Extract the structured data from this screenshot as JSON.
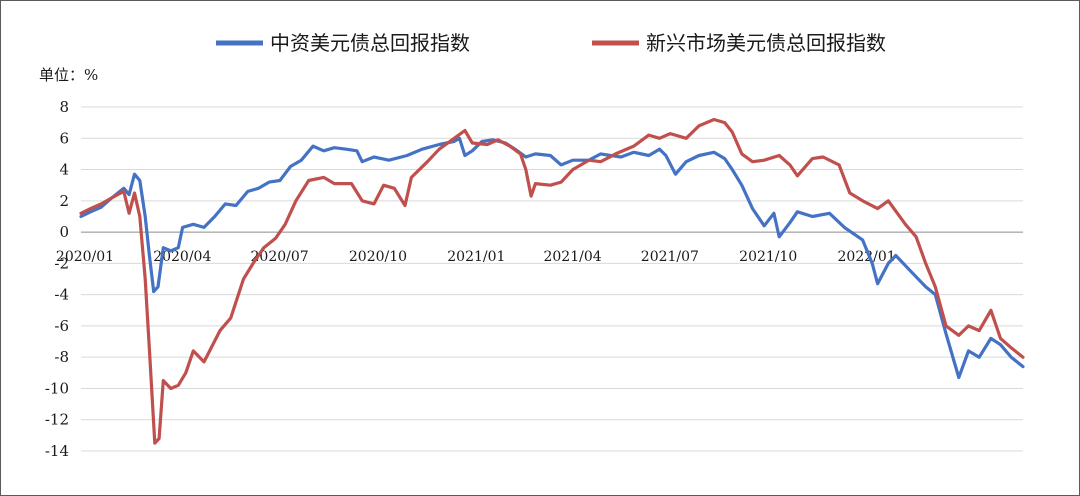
{
  "chart_data": {
    "type": "line",
    "unit_label": "单位：%",
    "ylim": [
      -14,
      8
    ],
    "yticks": [
      8,
      6,
      4,
      2,
      0,
      -2,
      -4,
      -6,
      -8,
      -10,
      -12,
      -14
    ],
    "xlim": [
      "2020-01-01",
      "2022-05-31"
    ],
    "xticks": [
      {
        "label": "2020/01",
        "date": "2020-01-01"
      },
      {
        "label": "2020/04",
        "date": "2020-04-01"
      },
      {
        "label": "2020/07",
        "date": "2020-07-01"
      },
      {
        "label": "2020/10",
        "date": "2020-10-01"
      },
      {
        "label": "2021/01",
        "date": "2021-01-01"
      },
      {
        "label": "2021/04",
        "date": "2021-04-01"
      },
      {
        "label": "2021/07",
        "date": "2021-07-01"
      },
      {
        "label": "2021/10",
        "date": "2021-10-01"
      },
      {
        "label": "2022/01",
        "date": "2022-01-01"
      }
    ],
    "grid": "horizontal",
    "legend_position": "top",
    "series": [
      {
        "name": "中资美元债总回报指数",
        "color": "#4472c4",
        "points": [
          [
            "2020-01-01",
            1.0
          ],
          [
            "2020-01-10",
            1.3
          ],
          [
            "2020-01-20",
            1.6
          ],
          [
            "2020-01-30",
            2.2
          ],
          [
            "2020-02-10",
            2.8
          ],
          [
            "2020-02-15",
            2.4
          ],
          [
            "2020-02-20",
            3.7
          ],
          [
            "2020-02-25",
            3.3
          ],
          [
            "2020-03-01",
            1.0
          ],
          [
            "2020-03-05",
            -1.5
          ],
          [
            "2020-03-09",
            -3.8
          ],
          [
            "2020-03-13",
            -3.5
          ],
          [
            "2020-03-18",
            -1.0
          ],
          [
            "2020-03-25",
            -1.2
          ],
          [
            "2020-04-01",
            -1.0
          ],
          [
            "2020-04-05",
            0.3
          ],
          [
            "2020-04-15",
            0.5
          ],
          [
            "2020-04-25",
            0.3
          ],
          [
            "2020-05-05",
            1.0
          ],
          [
            "2020-05-15",
            1.8
          ],
          [
            "2020-05-25",
            1.7
          ],
          [
            "2020-06-05",
            2.6
          ],
          [
            "2020-06-15",
            2.8
          ],
          [
            "2020-06-25",
            3.2
          ],
          [
            "2020-07-05",
            3.3
          ],
          [
            "2020-07-15",
            4.2
          ],
          [
            "2020-07-25",
            4.6
          ],
          [
            "2020-08-05",
            5.5
          ],
          [
            "2020-08-15",
            5.2
          ],
          [
            "2020-08-25",
            5.4
          ],
          [
            "2020-09-05",
            5.3
          ],
          [
            "2020-09-15",
            5.2
          ],
          [
            "2020-09-20",
            4.5
          ],
          [
            "2020-10-01",
            4.8
          ],
          [
            "2020-10-15",
            4.6
          ],
          [
            "2020-11-01",
            4.9
          ],
          [
            "2020-11-15",
            5.3
          ],
          [
            "2020-12-01",
            5.6
          ],
          [
            "2020-12-15",
            5.8
          ],
          [
            "2020-12-20",
            6.0
          ],
          [
            "2020-12-25",
            4.9
          ],
          [
            "2021-01-01",
            5.2
          ],
          [
            "2021-01-10",
            5.8
          ],
          [
            "2021-01-20",
            5.9
          ],
          [
            "2021-02-01",
            5.7
          ],
          [
            "2021-02-10",
            5.3
          ],
          [
            "2021-02-20",
            4.8
          ],
          [
            "2021-03-01",
            5.0
          ],
          [
            "2021-03-15",
            4.9
          ],
          [
            "2021-03-25",
            4.3
          ],
          [
            "2021-04-05",
            4.6
          ],
          [
            "2021-04-20",
            4.6
          ],
          [
            "2021-05-01",
            5.0
          ],
          [
            "2021-05-20",
            4.8
          ],
          [
            "2021-06-01",
            5.1
          ],
          [
            "2021-06-15",
            4.9
          ],
          [
            "2021-06-25",
            5.3
          ],
          [
            "2021-07-01",
            4.9
          ],
          [
            "2021-07-10",
            3.7
          ],
          [
            "2021-07-20",
            4.5
          ],
          [
            "2021-08-01",
            4.9
          ],
          [
            "2021-08-15",
            5.1
          ],
          [
            "2021-08-25",
            4.7
          ],
          [
            "2021-09-01",
            4.0
          ],
          [
            "2021-09-10",
            3.0
          ],
          [
            "2021-09-20",
            1.5
          ],
          [
            "2021-10-01",
            0.4
          ],
          [
            "2021-10-10",
            1.2
          ],
          [
            "2021-10-15",
            -0.3
          ],
          [
            "2021-10-25",
            0.6
          ],
          [
            "2021-11-01",
            1.3
          ],
          [
            "2021-11-15",
            1.0
          ],
          [
            "2021-12-01",
            1.2
          ],
          [
            "2021-12-15",
            0.3
          ],
          [
            "2022-01-01",
            -0.5
          ],
          [
            "2022-01-10",
            -2.0
          ],
          [
            "2022-01-15",
            -3.3
          ],
          [
            "2022-01-25",
            -2.0
          ],
          [
            "2022-02-01",
            -1.5
          ],
          [
            "2022-02-15",
            -2.5
          ],
          [
            "2022-03-01",
            -3.5
          ],
          [
            "2022-03-10",
            -4.0
          ],
          [
            "2022-03-20",
            -6.5
          ],
          [
            "2022-04-01",
            -9.3
          ],
          [
            "2022-04-10",
            -7.6
          ],
          [
            "2022-04-20",
            -8.0
          ],
          [
            "2022-05-01",
            -6.8
          ],
          [
            "2022-05-10",
            -7.2
          ],
          [
            "2022-05-20",
            -8.0
          ],
          [
            "2022-05-31",
            -8.6
          ]
        ]
      },
      {
        "name": "新兴市场美元债总回报指数",
        "color": "#c0504d",
        "points": [
          [
            "2020-01-01",
            1.2
          ],
          [
            "2020-01-10",
            1.5
          ],
          [
            "2020-01-20",
            1.8
          ],
          [
            "2020-01-30",
            2.2
          ],
          [
            "2020-02-10",
            2.6
          ],
          [
            "2020-02-15",
            1.2
          ],
          [
            "2020-02-20",
            2.5
          ],
          [
            "2020-02-25",
            1.0
          ],
          [
            "2020-03-01",
            -3.0
          ],
          [
            "2020-03-05",
            -7.5
          ],
          [
            "2020-03-10",
            -13.5
          ],
          [
            "2020-03-14",
            -13.2
          ],
          [
            "2020-03-18",
            -9.5
          ],
          [
            "2020-03-25",
            -10.0
          ],
          [
            "2020-04-01",
            -9.8
          ],
          [
            "2020-04-08",
            -9.0
          ],
          [
            "2020-04-15",
            -7.6
          ],
          [
            "2020-04-25",
            -8.3
          ],
          [
            "2020-05-01",
            -7.5
          ],
          [
            "2020-05-10",
            -6.3
          ],
          [
            "2020-05-20",
            -5.5
          ],
          [
            "2020-06-01",
            -3.0
          ],
          [
            "2020-06-10",
            -2.0
          ],
          [
            "2020-06-20",
            -1.0
          ],
          [
            "2020-07-01",
            -0.4
          ],
          [
            "2020-07-10",
            0.5
          ],
          [
            "2020-07-20",
            2.0
          ],
          [
            "2020-08-01",
            3.3
          ],
          [
            "2020-08-15",
            3.5
          ],
          [
            "2020-08-25",
            3.1
          ],
          [
            "2020-09-10",
            3.1
          ],
          [
            "2020-09-20",
            2.0
          ],
          [
            "2020-10-01",
            1.8
          ],
          [
            "2020-10-10",
            3.0
          ],
          [
            "2020-10-20",
            2.8
          ],
          [
            "2020-10-30",
            1.7
          ],
          [
            "2020-11-05",
            3.5
          ],
          [
            "2020-11-20",
            4.5
          ],
          [
            "2020-12-01",
            5.3
          ],
          [
            "2020-12-15",
            6.0
          ],
          [
            "2020-12-25",
            6.5
          ],
          [
            "2021-01-01",
            5.7
          ],
          [
            "2021-01-15",
            5.6
          ],
          [
            "2021-01-25",
            5.9
          ],
          [
            "2021-02-05",
            5.5
          ],
          [
            "2021-02-15",
            5.0
          ],
          [
            "2021-02-20",
            4.0
          ],
          [
            "2021-02-25",
            2.3
          ],
          [
            "2021-03-01",
            3.1
          ],
          [
            "2021-03-15",
            3.0
          ],
          [
            "2021-03-25",
            3.2
          ],
          [
            "2021-04-05",
            4.0
          ],
          [
            "2021-04-20",
            4.6
          ],
          [
            "2021-05-01",
            4.5
          ],
          [
            "2021-05-15",
            5.0
          ],
          [
            "2021-06-01",
            5.5
          ],
          [
            "2021-06-15",
            6.2
          ],
          [
            "2021-06-25",
            6.0
          ],
          [
            "2021-07-05",
            6.3
          ],
          [
            "2021-07-20",
            6.0
          ],
          [
            "2021-08-01",
            6.8
          ],
          [
            "2021-08-15",
            7.2
          ],
          [
            "2021-08-25",
            7.0
          ],
          [
            "2021-09-01",
            6.4
          ],
          [
            "2021-09-10",
            5.0
          ],
          [
            "2021-09-20",
            4.5
          ],
          [
            "2021-10-01",
            4.6
          ],
          [
            "2021-10-15",
            4.9
          ],
          [
            "2021-10-25",
            4.3
          ],
          [
            "2021-11-01",
            3.6
          ],
          [
            "2021-11-15",
            4.7
          ],
          [
            "2021-11-25",
            4.8
          ],
          [
            "2021-12-10",
            4.3
          ],
          [
            "2021-12-20",
            2.5
          ],
          [
            "2022-01-01",
            2.0
          ],
          [
            "2022-01-15",
            1.5
          ],
          [
            "2022-01-25",
            2.0
          ],
          [
            "2022-02-10",
            0.5
          ],
          [
            "2022-02-20",
            -0.3
          ],
          [
            "2022-03-01",
            -2.0
          ],
          [
            "2022-03-10",
            -3.5
          ],
          [
            "2022-03-20",
            -6.0
          ],
          [
            "2022-04-01",
            -6.6
          ],
          [
            "2022-04-10",
            -6.0
          ],
          [
            "2022-04-20",
            -6.3
          ],
          [
            "2022-05-01",
            -5.0
          ],
          [
            "2022-05-10",
            -6.8
          ],
          [
            "2022-05-20",
            -7.4
          ],
          [
            "2022-05-31",
            -8.0
          ]
        ]
      }
    ]
  }
}
